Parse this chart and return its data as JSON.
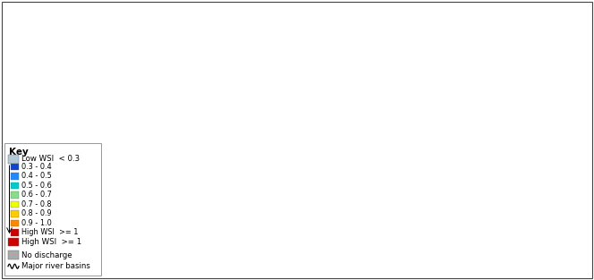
{
  "figure_width": 6.64,
  "figure_height": 3.13,
  "dpi": 100,
  "background_color": "#ffffff",
  "outer_border_color": "#888888",
  "ocean_color": "#c8d8e8",
  "legend": {
    "title": "Key",
    "title_fontsize": 7.5,
    "title_fontweight": "bold",
    "fontsize": 6.2,
    "entries": [
      {
        "label": "Low WSI  < 0.3",
        "color": "#b0c8d8",
        "is_wide": true
      },
      {
        "label": "0.3 - 0.4",
        "color": "#1144cc"
      },
      {
        "label": "0.4 - 0.5",
        "color": "#2288ff"
      },
      {
        "label": "0.5 - 0.6",
        "color": "#00cccc"
      },
      {
        "label": "0.6 - 0.7",
        "color": "#88dd88"
      },
      {
        "label": "0.7 - 0.8",
        "color": "#eeff00"
      },
      {
        "label": "0.8 - 0.9",
        "color": "#ffcc00"
      },
      {
        "label": "0.9 - 1.0",
        "color": "#ff8800"
      },
      {
        "label": "High WSI  >= 1",
        "color": "#cc0000",
        "is_wide": true
      },
      {
        "label": "No discharge",
        "color": "#aaaaaa",
        "is_wide": true
      },
      {
        "label": "Major river basins",
        "color": "#000000",
        "is_line": true
      }
    ]
  }
}
